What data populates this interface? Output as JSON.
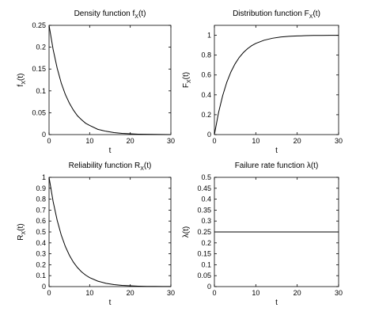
{
  "chart_data": [
    {
      "type": "line",
      "title": "Density function f",
      "title_sub": "X",
      "title_suffix": "(t)",
      "xlabel": "t",
      "ylabel": "f",
      "ylabel_sub": "X",
      "ylabel_suffix": "(t)",
      "xlim": [
        0,
        30
      ],
      "ylim": [
        0,
        0.25
      ],
      "xticks": [
        "0",
        "10",
        "20",
        "30"
      ],
      "yticks": [
        "0",
        "0.05",
        "0.1",
        "0.15",
        "0.2",
        "0.25"
      ],
      "x": [
        0,
        1,
        2,
        3,
        4,
        5,
        6,
        7,
        8,
        9,
        10,
        12,
        14,
        16,
        18,
        20,
        22,
        24,
        26,
        28,
        30
      ],
      "values": [
        0.25,
        0.195,
        0.152,
        0.118,
        0.092,
        0.072,
        0.056,
        0.043,
        0.034,
        0.026,
        0.021,
        0.012,
        0.0076,
        0.0046,
        0.0028,
        0.0017,
        0.001,
        0.0006,
        0.0004,
        0.0002,
        0.0001
      ],
      "grid": false
    },
    {
      "type": "line",
      "title": "Distribution function F",
      "title_sub": "X",
      "title_suffix": "(t)",
      "xlabel": "t",
      "ylabel": "F",
      "ylabel_sub": "X",
      "ylabel_suffix": "(t)",
      "xlim": [
        0,
        30
      ],
      "ylim": [
        0,
        1.1
      ],
      "xticks": [
        "0",
        "10",
        "20",
        "30"
      ],
      "yticks": [
        "0",
        "0.2",
        "0.4",
        "0.6",
        "0.8",
        "1"
      ],
      "x": [
        0,
        1,
        2,
        3,
        4,
        5,
        6,
        7,
        8,
        9,
        10,
        12,
        14,
        16,
        18,
        20,
        22,
        24,
        26,
        28,
        30
      ],
      "values": [
        0,
        0.221,
        0.393,
        0.528,
        0.632,
        0.713,
        0.777,
        0.826,
        0.865,
        0.895,
        0.918,
        0.95,
        0.97,
        0.982,
        0.989,
        0.993,
        0.996,
        0.998,
        0.998,
        0.999,
        0.999
      ],
      "grid": false
    },
    {
      "type": "line",
      "title": "Reliability function R",
      "title_sub": "X",
      "title_suffix": "(t)",
      "xlabel": "t",
      "ylabel": "R",
      "ylabel_sub": "X",
      "ylabel_suffix": "(t)",
      "xlim": [
        0,
        30
      ],
      "ylim": [
        0,
        1
      ],
      "xticks": [
        "0",
        "10",
        "20",
        "30"
      ],
      "yticks": [
        "0",
        "0.1",
        "0.2",
        "0.3",
        "0.4",
        "0.5",
        "0.6",
        "0.7",
        "0.8",
        "0.9",
        "1"
      ],
      "x": [
        0,
        1,
        2,
        3,
        4,
        5,
        6,
        7,
        8,
        9,
        10,
        12,
        14,
        16,
        18,
        20,
        22,
        24,
        26,
        28,
        30
      ],
      "values": [
        1,
        0.779,
        0.607,
        0.472,
        0.368,
        0.287,
        0.223,
        0.174,
        0.135,
        0.105,
        0.082,
        0.05,
        0.03,
        0.018,
        0.011,
        0.007,
        0.004,
        0.002,
        0.0015,
        0.0009,
        0.0006
      ],
      "grid": false
    },
    {
      "type": "line",
      "title": "Failure rate function λ(t)",
      "title_sub": "",
      "title_suffix": "",
      "xlabel": "t",
      "ylabel": "λ(t)",
      "ylabel_sub": "",
      "ylabel_suffix": "",
      "xlim": [
        0,
        30
      ],
      "ylim": [
        0,
        0.5
      ],
      "xticks": [
        "0",
        "10",
        "20",
        "30"
      ],
      "yticks": [
        "0",
        "0.05",
        "0.1",
        "0.15",
        "0.2",
        "0.25",
        "0.3",
        "0.35",
        "0.4",
        "0.45",
        "0.5"
      ],
      "x": [
        0,
        30
      ],
      "values": [
        0.25,
        0.25
      ],
      "grid": false
    }
  ]
}
